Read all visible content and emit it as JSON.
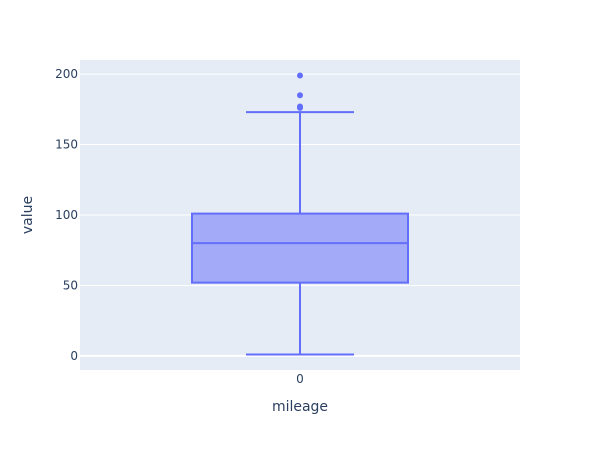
{
  "chart_data": {
    "type": "box",
    "xlabel": "mileage",
    "ylabel": "value",
    "categories": [
      "0"
    ],
    "ylim": [
      -10,
      210
    ],
    "yticks": [
      0,
      50,
      100,
      150,
      200
    ],
    "ytick_labels": [
      "0",
      "50",
      "100",
      "150",
      "200"
    ],
    "grid": true,
    "legend": "none",
    "box": {
      "category": "0",
      "lower_fence": 1,
      "q1": 52,
      "median": 80,
      "q3": 101,
      "upper_fence": 173,
      "outliers": [
        176,
        177,
        185,
        199
      ]
    },
    "colors": {
      "plot_background": "#e5ecf6",
      "grid": "#ffffff",
      "box_line": "#636efa",
      "box_fill": "#a3aaf8",
      "text": "#2a3f5f"
    }
  }
}
